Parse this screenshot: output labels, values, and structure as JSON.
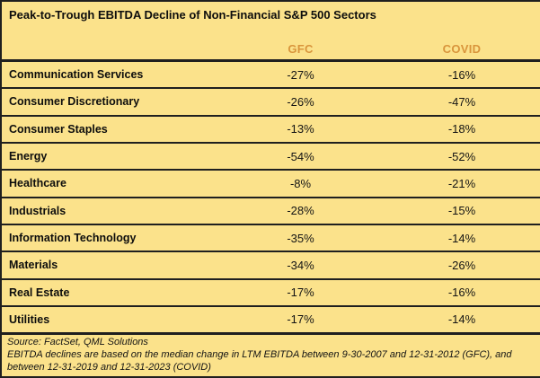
{
  "title": "Peak-to-Trough EBITDA Decline of Non-Financial S&P 500 Sectors",
  "table": {
    "column_headers": [
      "GFC",
      "COVID"
    ],
    "rows": [
      {
        "sector": "Communication Services",
        "gfc": "-27%",
        "covid": "-16%"
      },
      {
        "sector": "Consumer Discretionary",
        "gfc": "-26%",
        "covid": "-47%"
      },
      {
        "sector": "Consumer Staples",
        "gfc": "-13%",
        "covid": "-18%"
      },
      {
        "sector": "Energy",
        "gfc": "-54%",
        "covid": "-52%"
      },
      {
        "sector": "Healthcare",
        "gfc": "-8%",
        "covid": "-21%"
      },
      {
        "sector": "Industrials",
        "gfc": "-28%",
        "covid": "-15%"
      },
      {
        "sector": "Information Technology",
        "gfc": "-35%",
        "covid": "-14%"
      },
      {
        "sector": "Materials",
        "gfc": "-34%",
        "covid": "-26%"
      },
      {
        "sector": "Real Estate",
        "gfc": "-17%",
        "covid": "-16%"
      },
      {
        "sector": "Utilities",
        "gfc": "-17%",
        "covid": "-14%"
      }
    ]
  },
  "footer": {
    "source": "Source: FactSet, QML Solutions",
    "note": "EBITDA declines are based on the median change in LTM EBITDA between 9-30-2007 and 12-31-2012 (GFC), and between 12-31-2019 and 12-31-2023 (COVID)"
  },
  "colors": {
    "background": "#FBE28B",
    "header_text": "#D9953C",
    "body_text": "#111111",
    "line": "#1F1F1F"
  },
  "chart_data": {
    "type": "table",
    "title": "Peak-to-Trough EBITDA Decline of Non-Financial S&P 500 Sectors",
    "categories": [
      "Communication Services",
      "Consumer Discretionary",
      "Consumer Staples",
      "Energy",
      "Healthcare",
      "Industrials",
      "Information Technology",
      "Materials",
      "Real Estate",
      "Utilities"
    ],
    "series": [
      {
        "name": "GFC",
        "values": [
          -27,
          -26,
          -13,
          -54,
          -8,
          -28,
          -35,
          -34,
          -17,
          -17
        ]
      },
      {
        "name": "COVID",
        "values": [
          -16,
          -47,
          -18,
          -52,
          -21,
          -15,
          -14,
          -26,
          -16,
          -14
        ]
      }
    ],
    "unit": "percent",
    "notes": "Peak-to-trough EBITDA decline by sector; GFC window 9-30-2007 to 12-31-2012, COVID window 12-31-2019 to 12-31-2023"
  }
}
